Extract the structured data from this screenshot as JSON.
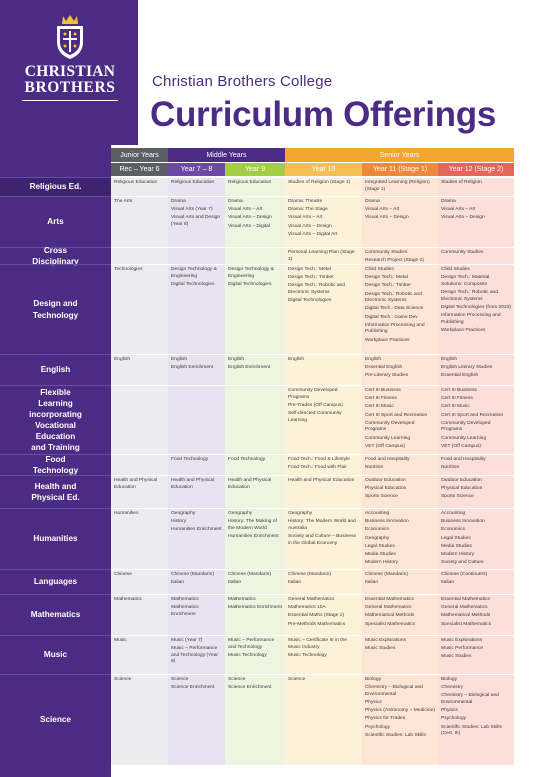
{
  "brand": {
    "line1": "CHRISTIAN",
    "line2": "BROTHERS",
    "college": "Christian Brothers College",
    "title": "Curriculum Offerings"
  },
  "header": {
    "groups": [
      "Junior Years",
      "Middle Years",
      "Senior Years"
    ],
    "years": [
      "Rec – Year 6",
      "Year 7 – 8",
      "Year 9",
      "Year 10",
      "Year 11 (Stage 1)",
      "Year 12 (Stage 2)"
    ]
  },
  "rows": [
    {
      "subject": [
        "Religious Ed."
      ],
      "cells": [
        [
          "Religious Education"
        ],
        [
          "Religious Education"
        ],
        [
          "Religious Education"
        ],
        [
          "Studies of Religion (Stage 1)"
        ],
        [
          "Integrated Learning (Religion) (Stage 1)"
        ],
        [
          "Studies of Religion"
        ]
      ]
    },
    {
      "subject": [
        "Arts"
      ],
      "cells": [
        [
          "The Arts"
        ],
        [
          "Drama",
          "Visual Arts (Year 7)",
          "Visual Arts and Design (Year 8)"
        ],
        [
          "Drama",
          "Visual Arts – Art",
          "Visual Arts – Design",
          "Visual Arts – Digital"
        ],
        [
          "Drama: Theatre",
          "Drama: The Stage",
          "Visual Arts – Art",
          "Visual Arts – Design",
          "Visual Arts – Digital Art"
        ],
        [
          "Drama",
          "Visual Arts – Art",
          "Visual Arts – Design"
        ],
        [
          "Drama",
          "Visual Arts – Art",
          "Visual Arts – Design"
        ]
      ]
    },
    {
      "subject": [
        "Cross",
        "Disciplinary"
      ],
      "cells": [
        [],
        [],
        [],
        [
          "Personal Learning Plan (Stage 1)"
        ],
        [
          "Community Studies",
          "Research Project (Stage 2)"
        ],
        [
          "Community Studies"
        ]
      ]
    },
    {
      "subject": [
        "Design and",
        "Technology"
      ],
      "cells": [
        [
          "Technologies"
        ],
        [
          "Design Technology & Engineering",
          "Digital Technologies"
        ],
        [
          "Design Technology & Engineering",
          "Digital Technologies"
        ],
        [
          "Design Tech.: Metal",
          "Design Tech.: Timber",
          "Design Tech.: Robotic and Electronic Systems",
          "Digital Technologies"
        ],
        [
          "Child Studies",
          "Design Tech.: Metal",
          "Design Tech.: Timber",
          "Design Tech.: Robotic and Electronic Systems",
          "Digital Tech.: Data Science",
          "Digital Tech.: Game Dev",
          "Information Processing and Publishing",
          "Workplace Practices"
        ],
        [
          "Child Studies",
          "Design Tech.: Material Solutions: Composite",
          "Design Tech.: Robotic and Electronic Systems",
          "Digital Technologies (from 2023)",
          "Information Processing and Publishing",
          "Workplace Practices"
        ]
      ]
    },
    {
      "subject": [
        "English"
      ],
      "cells": [
        [
          "English"
        ],
        [
          "English",
          "English Enrichment"
        ],
        [
          "English",
          "English Enrichment"
        ],
        [
          "English"
        ],
        [
          "English",
          "Essential English",
          "Pre-Literary Studies"
        ],
        [
          "English",
          "English Literary Studies",
          "Essential English"
        ]
      ]
    },
    {
      "subject": [
        "Flexible",
        "Learning",
        "incorporating",
        "Vocational",
        "Education",
        "and Training"
      ],
      "cells": [
        [],
        [],
        [],
        [
          "Community Developed Programs",
          "Pre-Trades (Off Campus)",
          "Self-directed Community Learning"
        ],
        [
          "Cert III Business",
          "Cert III Fitness",
          "Cert III Music",
          "Cert III Sport and Recreation",
          "Community Developed Programs",
          "Community Learning",
          "VET (Off Campus)"
        ],
        [
          "Cert III Business",
          "Cert III Fitness",
          "Cert III Music",
          "Cert III Sport and Recreation",
          "Community Developed Programs",
          "Community Learning",
          "VET (Off Campus)"
        ]
      ]
    },
    {
      "subject": [
        "Food",
        "Technology"
      ],
      "cells": [
        [],
        [
          "Food Technology"
        ],
        [
          "Food Technology"
        ],
        [
          "Food Tech.: Food & Lifestyle",
          "Food Tech.: Food with Flair"
        ],
        [
          "Food and Hospitality",
          "Nutrition"
        ],
        [
          "Food and Hospitality",
          "Nutrition"
        ]
      ]
    },
    {
      "subject": [
        "Health and",
        "Physical Ed."
      ],
      "cells": [
        [
          "Health and Physical Education"
        ],
        [
          "Health and Physical Education"
        ],
        [
          "Health and Physical Education"
        ],
        [
          "Health and Physical Education"
        ],
        [
          "Outdoor Education",
          "Physical Education",
          "Sports Science"
        ],
        [
          "Outdoor Education",
          "Physical Education",
          "Sports Science"
        ]
      ]
    },
    {
      "subject": [
        "Humanities"
      ],
      "cells": [
        [
          "Humanities"
        ],
        [
          "Geography",
          "History",
          "Humanities Enrichment"
        ],
        [
          "Geography",
          "History: The Making of the Modern World",
          "Humanities Enrichment"
        ],
        [
          "Geography",
          "History: The Modern World and Australia",
          "Society and Culture – Business in the Global Economy"
        ],
        [
          "Accounting",
          "Business Innovation",
          "Economics",
          "Geography",
          "Legal Studies",
          "Media Studies",
          "Modern History"
        ],
        [
          "Accounting",
          "Business Innovation",
          "Economics",
          "Legal Studies",
          "Media Studies",
          "Modern History",
          "Society and Culture"
        ]
      ]
    },
    {
      "subject": [
        "Languages"
      ],
      "cells": [
        [
          "Chinese"
        ],
        [
          "Chinese (Mandarin)",
          "Italian"
        ],
        [
          "Chinese (Mandarin)",
          "Italian"
        ],
        [
          "Chinese (Mandarin)",
          "Italian"
        ],
        [
          "Chinese (Mandarin)",
          "Italian"
        ],
        [
          "Chinese (Continuers)",
          "Italian"
        ]
      ]
    },
    {
      "subject": [
        "Mathematics"
      ],
      "cells": [
        [
          "Mathematics"
        ],
        [
          "Mathematics",
          "Mathematics Enrichment"
        ],
        [
          "Mathematics",
          "Mathematics Enrichment"
        ],
        [
          "General Mathematics",
          "Mathematics 10A",
          "Essential Maths (Stage 1)",
          "Pre-Methods Mathematics"
        ],
        [
          "Essential Mathematics",
          "General Mathematics",
          "Mathematical Methods",
          "Specialist Mathematics"
        ],
        [
          "Essential Mathematics",
          "General Mathematics",
          "Mathematical Methods",
          "Specialist Mathematics"
        ]
      ]
    },
    {
      "subject": [
        "Music"
      ],
      "cells": [
        [
          "Music"
        ],
        [
          "Music (Year 7)",
          "Music – Performance and Technology (Year 8)"
        ],
        [
          "Music – Performance and Technology",
          "Music Technology"
        ],
        [
          "Music – Certificate III in the Music Industry",
          "Music Technology"
        ],
        [
          "Music Explorations",
          "Music Studies"
        ],
        [
          "Music Explorations",
          "Music Performance",
          "Music Studies"
        ]
      ]
    },
    {
      "subject": [
        "Science"
      ],
      "cells": [
        [
          "Science"
        ],
        [
          "Science",
          "Science Enrichment"
        ],
        [
          "Science",
          "Science Enrichment"
        ],
        [
          "Science"
        ],
        [
          "Biology",
          "Chemistry – Biological and Environmental",
          "Physics",
          "Physics (Astronomy + Medicine)",
          "Physics for Trades",
          "Psychology",
          "Scientific Studies: Lab Skills"
        ],
        [
          "Biology",
          "Chemistry",
          "Chemistry – Biological and Environmental",
          "Physics",
          "Psychology",
          "Scientific Studies: Lab Skills (Cert. III)"
        ]
      ]
    }
  ]
}
